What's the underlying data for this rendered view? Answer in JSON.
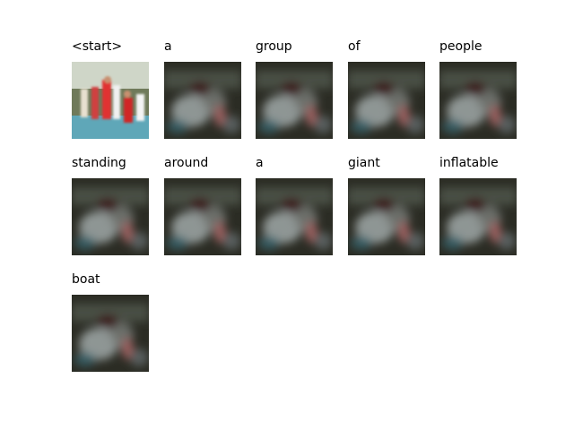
{
  "captions": [
    "<start>",
    "a",
    "group",
    "of",
    "people",
    "standing",
    "around",
    "a",
    "giant",
    "inflatable",
    "boat"
  ]
}
